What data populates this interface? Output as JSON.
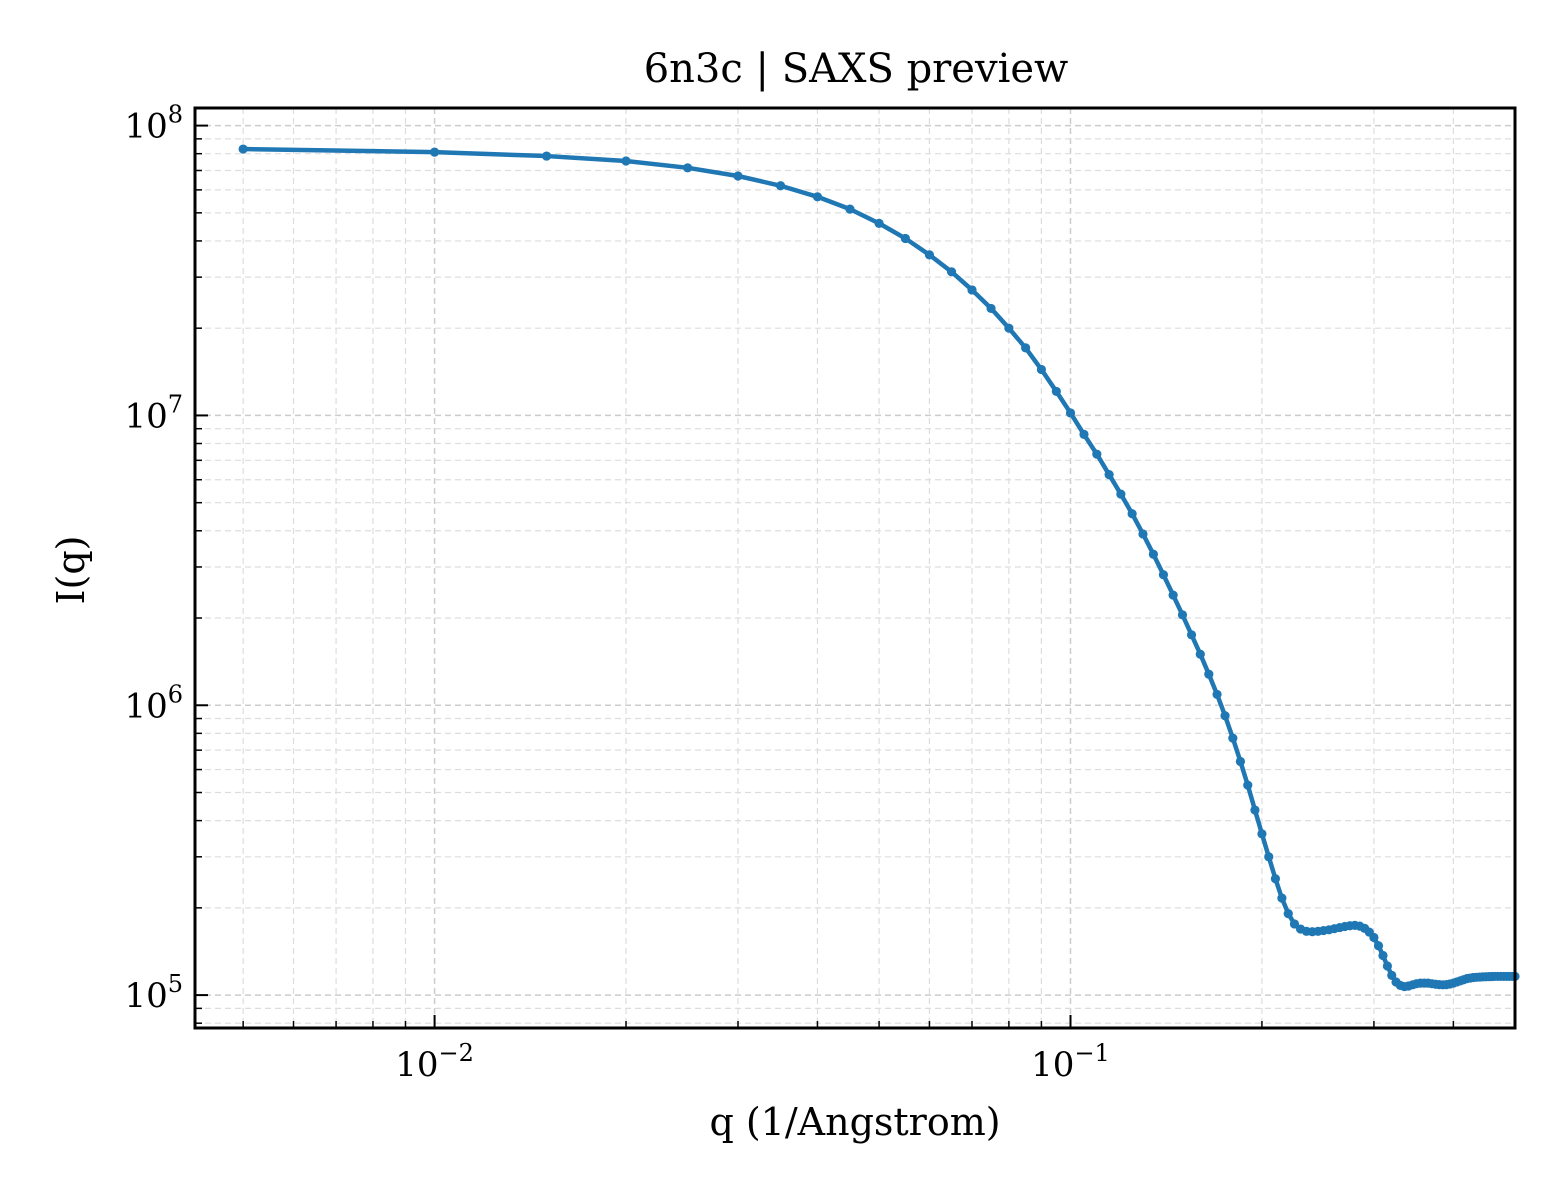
{
  "chart_data": {
    "type": "line",
    "title": "6n3c | SAXS preview",
    "xlabel": "q (1/Angstrom)",
    "ylabel": "I(q)",
    "xscale": "log",
    "yscale": "log",
    "xlim": [
      0.0042,
      0.5
    ],
    "ylim": [
      77000,
      115000000
    ],
    "grid": true,
    "line_color": "#1f77b4",
    "x_ticks": [
      {
        "value": 0.01,
        "base": "10",
        "exp": "−2"
      },
      {
        "value": 0.1,
        "base": "10",
        "exp": "−1"
      }
    ],
    "y_ticks": [
      {
        "value": 100000,
        "base": "10",
        "exp": "5"
      },
      {
        "value": 1000000,
        "base": "10",
        "exp": "6"
      },
      {
        "value": 10000000,
        "base": "10",
        "exp": "7"
      },
      {
        "value": 100000000,
        "base": "10",
        "exp": "8"
      }
    ],
    "series": [
      {
        "x": [
          0.005,
          0.01,
          0.015,
          0.02,
          0.025,
          0.03,
          0.035,
          0.04,
          0.045,
          0.05,
          0.055,
          0.06,
          0.065,
          0.07,
          0.075,
          0.08,
          0.085,
          0.09,
          0.095,
          0.1,
          0.105,
          0.11,
          0.115,
          0.12,
          0.125,
          0.13,
          0.135,
          0.14,
          0.145,
          0.15,
          0.155,
          0.16,
          0.165,
          0.17,
          0.175,
          0.18,
          0.185,
          0.19,
          0.195,
          0.2,
          0.205,
          0.21,
          0.215,
          0.22,
          0.225,
          0.23,
          0.235,
          0.24,
          0.245,
          0.25,
          0.255,
          0.26,
          0.265,
          0.27,
          0.275,
          0.28,
          0.285,
          0.29,
          0.295,
          0.3,
          0.305,
          0.31,
          0.315,
          0.32,
          0.325,
          0.33,
          0.335,
          0.34,
          0.345,
          0.35,
          0.355,
          0.36,
          0.365,
          0.37,
          0.375,
          0.38,
          0.385,
          0.39,
          0.395,
          0.4,
          0.405,
          0.41,
          0.415,
          0.42,
          0.425,
          0.43,
          0.435,
          0.44,
          0.445,
          0.45,
          0.455,
          0.46,
          0.465,
          0.47,
          0.475,
          0.48,
          0.485,
          0.49,
          0.495,
          0.5
        ],
        "y": [
          83000000,
          81000000,
          78500000,
          75500000,
          71500000,
          67000000,
          62000000,
          56800000,
          51500000,
          46000000,
          40800000,
          35800000,
          31300000,
          27100000,
          23400000,
          20000000,
          17100000,
          14400000,
          12100000,
          10200000,
          8600000,
          7350000,
          6250000,
          5350000,
          4580000,
          3900000,
          3320000,
          2820000,
          2400000,
          2050000,
          1750000,
          1500000,
          1280000,
          1090000,
          920000,
          770000,
          640000,
          530000,
          435000,
          360000,
          300000,
          252000,
          216000,
          191000,
          176000,
          169000,
          166000,
          165500,
          166000,
          167000,
          168000,
          169500,
          171000,
          172500,
          173500,
          174000,
          173000,
          170000,
          165000,
          158000,
          148000,
          137000,
          126000,
          117000,
          111000,
          108000,
          107000,
          107500,
          108500,
          109500,
          110000,
          110000,
          110000,
          109500,
          109000,
          108700,
          108500,
          108700,
          109200,
          110000,
          111000,
          112000,
          113000,
          114000,
          114500,
          115000,
          115200,
          115400,
          115600,
          115700,
          115800,
          115900,
          116000,
          116000,
          116000,
          116000,
          116000,
          116000,
          116000,
          116000
        ]
      }
    ]
  }
}
